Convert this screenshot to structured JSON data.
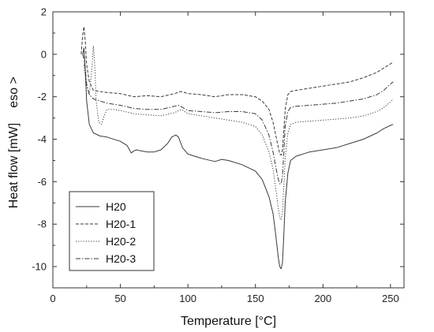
{
  "chart_data": {
    "type": "line",
    "title": "",
    "xlabel": "Temperature [°C]",
    "ylabel": "Heat flow  [mW]",
    "annotation": "eso >",
    "xlim": [
      0,
      260
    ],
    "ylim": [
      -11,
      2
    ],
    "xticks": [
      0,
      50,
      100,
      150,
      200,
      250
    ],
    "yticks": [
      2,
      0,
      -2,
      -4,
      -6,
      -8,
      -10
    ],
    "grid": false,
    "legend_position": "bottom-left",
    "series": [
      {
        "name": "H20",
        "dash": "solid",
        "x": [
          22,
          23,
          24,
          25,
          27,
          30,
          35,
          40,
          50,
          55,
          58,
          60,
          62,
          65,
          70,
          75,
          80,
          85,
          88,
          91,
          93,
          96,
          100,
          110,
          120,
          125,
          130,
          140,
          150,
          155,
          160,
          163,
          165,
          167,
          168,
          169,
          170,
          171,
          172,
          174,
          176,
          180,
          190,
          200,
          210,
          220,
          230,
          240,
          245,
          250,
          252
        ],
        "y": [
          0,
          0.3,
          -0.8,
          -2.2,
          -3.3,
          -3.7,
          -3.85,
          -3.9,
          -4.1,
          -4.3,
          -4.65,
          -4.55,
          -4.5,
          -4.55,
          -4.6,
          -4.6,
          -4.5,
          -4.2,
          -3.9,
          -3.8,
          -3.9,
          -4.4,
          -4.7,
          -4.9,
          -5.05,
          -4.95,
          -5.0,
          -5.2,
          -5.5,
          -5.9,
          -6.7,
          -7.5,
          -8.5,
          -9.6,
          -10.0,
          -10.1,
          -9.8,
          -8.5,
          -7.0,
          -5.6,
          -5.0,
          -4.8,
          -4.6,
          -4.5,
          -4.4,
          -4.2,
          -4.0,
          -3.7,
          -3.5,
          -3.35,
          -3.3
        ]
      },
      {
        "name": "H20-1",
        "dash": "dashed",
        "x": [
          21,
          22,
          23,
          24,
          25,
          27,
          30,
          35,
          40,
          50,
          60,
          70,
          80,
          90,
          95,
          100,
          110,
          120,
          130,
          140,
          150,
          155,
          160,
          163,
          165,
          167,
          168,
          169,
          170,
          171,
          172,
          174,
          176,
          180,
          190,
          200,
          210,
          220,
          230,
          240,
          245,
          250,
          252
        ],
        "y": [
          0,
          0.9,
          1.3,
          0.6,
          -0.5,
          -1.3,
          -1.7,
          -1.75,
          -1.8,
          -1.85,
          -2.0,
          -1.95,
          -2.0,
          -1.85,
          -1.75,
          -1.85,
          -1.9,
          -2.0,
          -1.9,
          -1.9,
          -2.0,
          -2.2,
          -2.6,
          -3.2,
          -3.8,
          -4.4,
          -4.7,
          -4.75,
          -4.5,
          -3.6,
          -2.6,
          -1.9,
          -1.75,
          -1.7,
          -1.6,
          -1.5,
          -1.4,
          -1.3,
          -1.1,
          -0.85,
          -0.65,
          -0.45,
          -0.35
        ]
      },
      {
        "name": "H20-2",
        "dash": "dotted",
        "x": [
          23,
          25,
          27,
          29,
          30,
          31,
          32,
          34,
          36,
          38,
          40,
          45,
          50,
          60,
          70,
          80,
          90,
          95,
          100,
          110,
          120,
          130,
          140,
          150,
          155,
          160,
          163,
          165,
          167,
          168,
          169,
          170,
          171,
          172,
          174,
          176,
          180,
          190,
          200,
          210,
          220,
          230,
          240,
          245,
          250,
          252
        ],
        "y": [
          -0.5,
          -1.5,
          -1.9,
          -0.6,
          0.4,
          -0.5,
          -2.2,
          -3.2,
          -3.3,
          -2.9,
          -2.6,
          -2.6,
          -2.65,
          -2.8,
          -2.85,
          -2.9,
          -2.75,
          -2.6,
          -2.8,
          -2.9,
          -3.0,
          -3.1,
          -3.2,
          -3.4,
          -3.8,
          -4.6,
          -5.4,
          -6.3,
          -7.3,
          -7.7,
          -7.8,
          -7.4,
          -6.2,
          -4.9,
          -3.7,
          -3.3,
          -3.2,
          -3.15,
          -3.1,
          -3.05,
          -3.0,
          -2.9,
          -2.7,
          -2.5,
          -2.25,
          -2.1
        ]
      },
      {
        "name": "H20-3",
        "dash": "dashdot",
        "x": [
          22,
          23,
          24,
          25,
          27,
          30,
          35,
          40,
          50,
          60,
          70,
          80,
          90,
          93,
          96,
          100,
          110,
          120,
          130,
          140,
          150,
          155,
          160,
          163,
          165,
          167,
          168,
          169,
          170,
          171,
          172,
          174,
          176,
          180,
          190,
          200,
          210,
          220,
          230,
          240,
          245,
          250,
          252
        ],
        "y": [
          0,
          -0.2,
          -0.7,
          -1.4,
          -1.9,
          -2.1,
          -2.2,
          -2.3,
          -2.4,
          -2.55,
          -2.6,
          -2.6,
          -2.45,
          -2.4,
          -2.5,
          -2.65,
          -2.7,
          -2.75,
          -2.7,
          -2.7,
          -2.8,
          -3.1,
          -3.8,
          -4.6,
          -5.3,
          -5.9,
          -6.1,
          -6.1,
          -5.7,
          -4.6,
          -3.4,
          -2.7,
          -2.5,
          -2.45,
          -2.4,
          -2.35,
          -2.3,
          -2.2,
          -2.1,
          -1.9,
          -1.7,
          -1.4,
          -1.3
        ]
      }
    ]
  }
}
